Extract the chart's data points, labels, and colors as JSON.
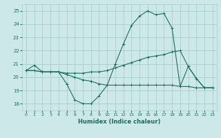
{
  "xlabel": "Humidex (Indice chaleur)",
  "xlim": [
    -0.5,
    23.5
  ],
  "ylim": [
    17.5,
    25.5
  ],
  "yticks": [
    18,
    19,
    20,
    21,
    22,
    23,
    24,
    25
  ],
  "xticks": [
    0,
    1,
    2,
    3,
    4,
    5,
    6,
    7,
    8,
    9,
    10,
    11,
    12,
    13,
    14,
    15,
    16,
    17,
    18,
    19,
    20,
    21,
    22,
    23
  ],
  "bg_color": "#cce8e8",
  "grid_color": "#aacccc",
  "line_color": "#1a6e5e",
  "series": [
    [
      20.5,
      20.9,
      20.4,
      20.4,
      20.4,
      19.5,
      18.3,
      18.0,
      18.0,
      18.6,
      19.4,
      21.0,
      22.5,
      23.9,
      24.6,
      25.0,
      24.7,
      24.8,
      23.7,
      19.3,
      20.8,
      19.9,
      19.2,
      19.2
    ],
    [
      20.5,
      20.5,
      20.4,
      20.4,
      20.4,
      20.3,
      20.3,
      20.3,
      20.4,
      20.4,
      20.5,
      20.7,
      20.9,
      21.1,
      21.3,
      21.5,
      21.6,
      21.7,
      21.9,
      22.0,
      20.8,
      19.9,
      19.2,
      19.2
    ],
    [
      20.5,
      20.5,
      20.4,
      20.4,
      20.4,
      20.2,
      20.0,
      19.8,
      19.7,
      19.5,
      19.4,
      19.4,
      19.4,
      19.4,
      19.4,
      19.4,
      19.4,
      19.4,
      19.4,
      19.3,
      19.3,
      19.2,
      19.2,
      19.2
    ]
  ]
}
